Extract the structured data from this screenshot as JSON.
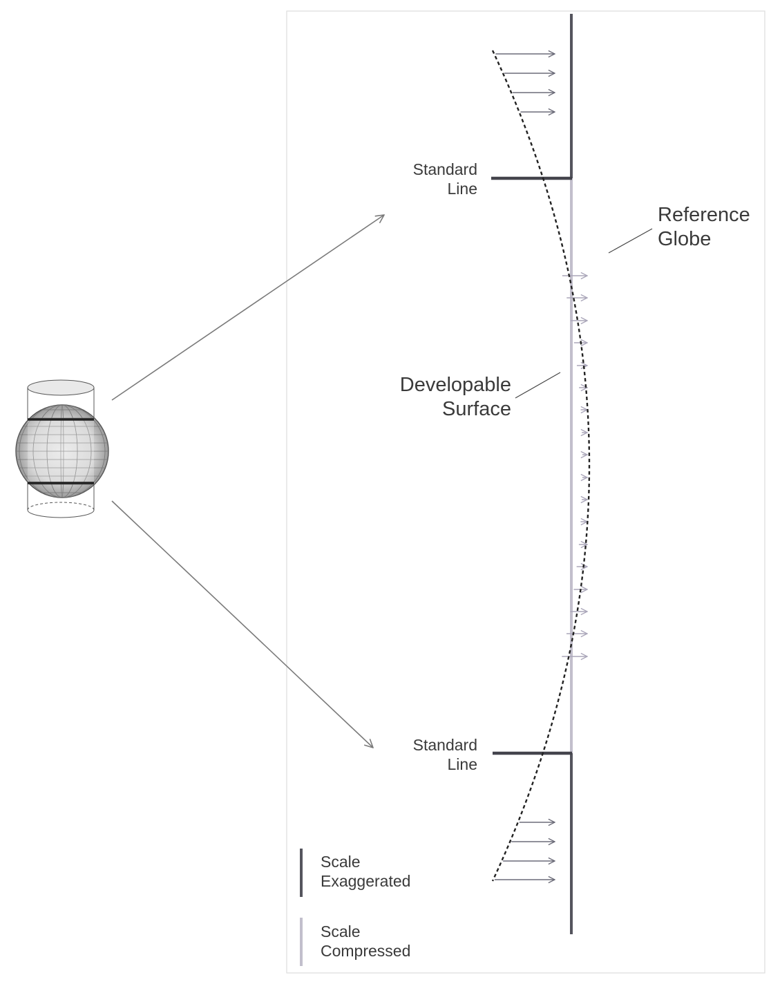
{
  "labels": {
    "standard_line_top": [
      "Standard",
      "Line"
    ],
    "standard_line_bottom": [
      "Standard",
      "Line"
    ],
    "reference_globe": [
      "Reference",
      "Globe"
    ],
    "developable_surface": [
      "Developable",
      "Surface"
    ]
  },
  "legend": {
    "exaggerated": [
      "Scale",
      "Exaggerated"
    ],
    "compressed": [
      "Scale",
      "Compressed"
    ]
  },
  "colors": {
    "exaggerated": "#55555e",
    "compressed": "#c2bfcc",
    "arrow_dark": "#6b6b78",
    "arrow_light": "#aaa6b9",
    "curve": "#222222",
    "panel_border": "#dddddd"
  }
}
